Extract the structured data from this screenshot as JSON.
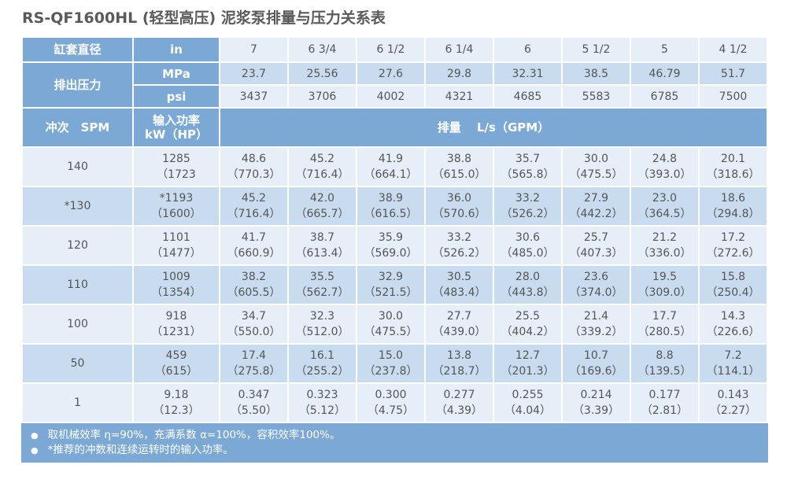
{
  "title": "RS-QF1600HL (轻型高压) 泥浆泵排量与压力关系表",
  "header": {
    "liner": "缸套直径",
    "in": "in",
    "pressure": "排出压力",
    "mpa": "MPa",
    "psi": "psi",
    "spm": "冲次　SPM",
    "power": "输入功率",
    "power_unit": "kW（HP）",
    "flow": "排量　 L/s（GPM）"
  },
  "liner_in": [
    "7",
    "6 3/4",
    "6 1/2",
    "6 1/4",
    "6",
    "5 1/2",
    "5",
    "4 1/2"
  ],
  "mpa": [
    "23.7",
    "25.56",
    "27.6",
    "29.8",
    "32.31",
    "38.5",
    "46.79",
    "51.7"
  ],
  "psi": [
    "3437",
    "3706",
    "4002",
    "4321",
    "4685",
    "5583",
    "6785",
    "7500"
  ],
  "rows": [
    {
      "spm": "140",
      "kw": "1285",
      "hp": "（1723",
      "flow": [
        "48.6",
        "45.2",
        "41.9",
        "38.8",
        "35.7",
        "30.0",
        "24.8",
        "20.1"
      ],
      "gpm": [
        "（770.3）",
        "（716.4）",
        "（664.1）",
        "（615.0）",
        "（565.8）",
        "（475.5）",
        "（393.0）",
        "（318.6）"
      ]
    },
    {
      "spm": "*130",
      "kw": "*1193",
      "hp": "（1600）",
      "flow": [
        "45.2",
        "42.0",
        "38.9",
        "36.0",
        "33.2",
        "27.9",
        "23.0",
        "18.6"
      ],
      "gpm": [
        "（716.4）",
        "（665.7）",
        "（616.5）",
        "（570.6）",
        "（526.2）",
        "（442.2）",
        "（364.5）",
        "（294.8）"
      ]
    },
    {
      "spm": "120",
      "kw": "1101",
      "hp": "（1477）",
      "flow": [
        "41.7",
        "38.7",
        "35.9",
        "33.2",
        "30.6",
        "25.7",
        "21.2",
        "17.2"
      ],
      "gpm": [
        "（660.9）",
        "（613.4）",
        "（569.0）",
        "（526.2）",
        "（485.0）",
        "（407.3）",
        "（336.0）",
        "（272.6）"
      ]
    },
    {
      "spm": "110",
      "kw": "1009",
      "hp": "（1354）",
      "flow": [
        "38.2",
        "35.5",
        "32.9",
        "30.5",
        "28.0",
        "23.6",
        "19.5",
        "15.8"
      ],
      "gpm": [
        "（605.5）",
        "（562.7）",
        "（521.5）",
        "（483.4）",
        "（443.8）",
        "（374.0）",
        "（309.0）",
        "（250.4）"
      ]
    },
    {
      "spm": "100",
      "kw": "918",
      "hp": "（1231）",
      "flow": [
        "34.7",
        "32.3",
        "30.0",
        "27.7",
        "25.5",
        "21.4",
        "17.7",
        "14.3"
      ],
      "gpm": [
        "（550.0）",
        "（512.0）",
        "（475.5）",
        "（439.0）",
        "（404.2）",
        "（339.2）",
        "（280.5）",
        "（226.6）"
      ]
    },
    {
      "spm": "50",
      "kw": "459",
      "hp": "（615）",
      "flow": [
        "17.4",
        "16.1",
        "15.0",
        "13.8",
        "12.7",
        "10.7",
        "8.8",
        "7.2"
      ],
      "gpm": [
        "（275.8）",
        "（255.2）",
        "（237.8）",
        "（218.7）",
        "（201.3）",
        "（169.6）",
        "（139.5）",
        "（114.1）"
      ]
    },
    {
      "spm": "1",
      "kw": "9.18",
      "hp": "（12.3）",
      "flow": [
        "0.347",
        "0.323",
        "0.300",
        "0.277",
        "0.255",
        "0.214",
        "0.177",
        "0.143"
      ],
      "gpm": [
        "（5.50）",
        "（5.12）",
        "（4.75）",
        "（4.39）",
        "（4.04）",
        "（3.39）",
        "（2.81）",
        "（2.27）"
      ]
    }
  ],
  "notes": [
    "取机械效率 η=90%，充满系数 α=100%，容积效率100%。",
    "*推荐的冲数和连续运转时的输入功率。"
  ]
}
